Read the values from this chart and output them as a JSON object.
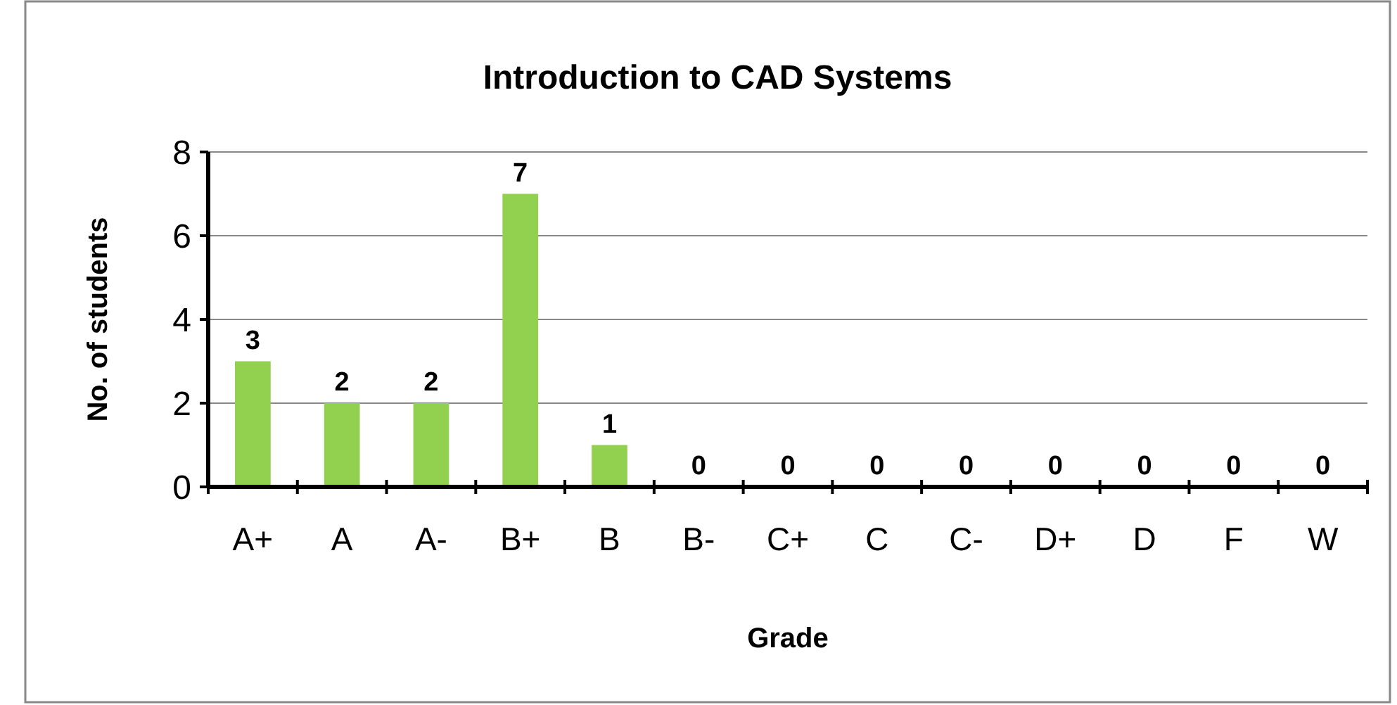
{
  "chart_data": {
    "type": "bar",
    "title": "Introduction to CAD Systems",
    "xlabel": "Grade",
    "ylabel": "No. of students",
    "categories": [
      "A+",
      "A",
      "A-",
      "B+",
      "B",
      "B-",
      "C+",
      "C",
      "C-",
      "D+",
      "D",
      "F",
      "W"
    ],
    "values": [
      3,
      2,
      2,
      7,
      1,
      0,
      0,
      0,
      0,
      0,
      0,
      0,
      0
    ],
    "color": "#92d050",
    "ylim": [
      0,
      8
    ],
    "yticks": [
      0,
      2,
      4,
      6,
      8
    ],
    "grid": "y",
    "data_labels": true
  }
}
